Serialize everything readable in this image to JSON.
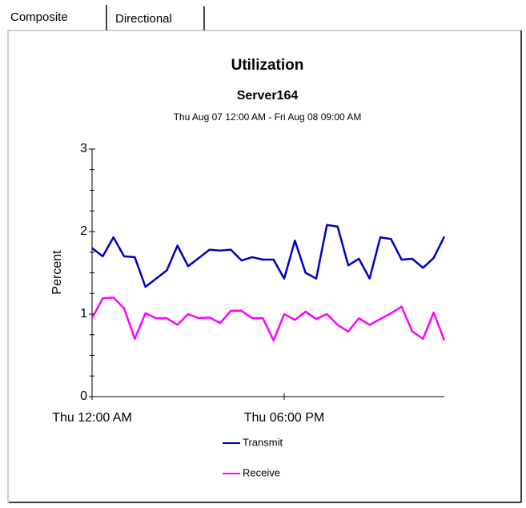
{
  "tabs": [
    "Composite",
    "Directional"
  ],
  "chart_data": {
    "type": "line",
    "title": "Utilization",
    "subtitle": "Server164",
    "date_range": "Thu Aug 07 12:00 AM - Fri Aug 08 09:00 AM",
    "y_label": "Percent",
    "x": [
      0,
      1,
      2,
      3,
      4,
      5,
      6,
      7,
      8,
      9,
      10,
      11,
      12,
      13,
      14,
      15,
      16,
      17,
      18,
      19,
      20,
      21,
      22,
      23,
      24,
      25,
      26,
      27,
      28,
      29,
      30,
      31,
      32,
      33
    ],
    "xlim": [
      0,
      33
    ],
    "xticks": [
      {
        "value": 0,
        "label": "Thu 12:00 AM"
      },
      {
        "value": 18,
        "label": "Thu 06:00 PM"
      }
    ],
    "ylim": [
      0,
      3
    ],
    "yticks": [
      0,
      1,
      2,
      3
    ],
    "series": [
      {
        "name": "Transmit",
        "color": "#0000c0",
        "values": [
          1.8,
          1.7,
          1.93,
          1.7,
          1.69,
          1.33,
          1.43,
          1.53,
          1.83,
          1.58,
          1.68,
          1.78,
          1.77,
          1.78,
          1.65,
          1.69,
          1.66,
          1.66,
          1.43,
          1.89,
          1.5,
          1.43,
          2.08,
          2.06,
          1.59,
          1.67,
          1.43,
          1.93,
          1.91,
          1.66,
          1.67,
          1.56,
          1.68,
          1.94
        ]
      },
      {
        "name": "Receive",
        "color": "#ff00ff",
        "values": [
          0.95,
          1.19,
          1.2,
          1.07,
          0.7,
          1.01,
          0.95,
          0.95,
          0.87,
          1.0,
          0.95,
          0.96,
          0.89,
          1.04,
          1.04,
          0.95,
          0.95,
          0.68,
          1.0,
          0.93,
          1.03,
          0.94,
          1.0,
          0.87,
          0.79,
          0.95,
          0.87,
          0.94,
          1.01,
          1.09,
          0.79,
          0.7,
          1.02,
          0.68
        ]
      }
    ]
  }
}
